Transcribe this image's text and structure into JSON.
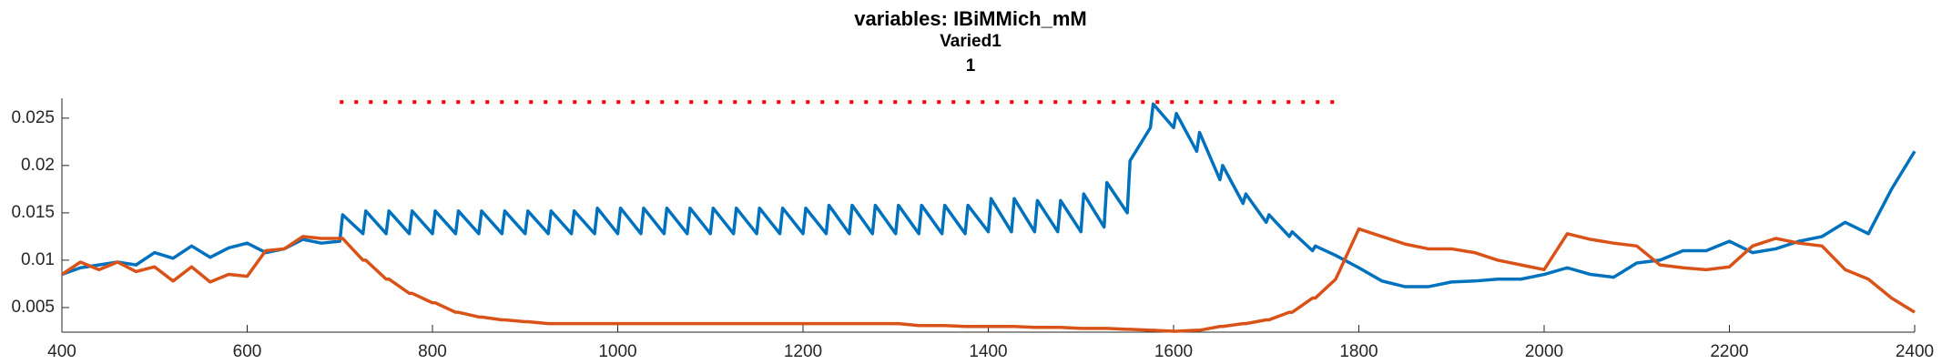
{
  "chart_data": {
    "type": "line",
    "title": "variables: IBiMMich_mM",
    "subtitle": "Varied1",
    "subtitle2": "1",
    "xlim": [
      400,
      2400
    ],
    "ylim": [
      0.0024,
      0.0271
    ],
    "xticks": [
      400,
      600,
      800,
      1000,
      1200,
      1400,
      1600,
      1800,
      2000,
      2200,
      2400
    ],
    "yticks": [
      0.005,
      0.01,
      0.015,
      0.02,
      0.025
    ],
    "grid": false,
    "reference_line": {
      "y": 0.0267,
      "x": [
        700,
        1785
      ],
      "color": "#ff0000",
      "style": "dotted"
    },
    "x": [
      400,
      420,
      440,
      460,
      480,
      500,
      520,
      540,
      560,
      580,
      600,
      620,
      640,
      660,
      680,
      700,
      703,
      725,
      728,
      750,
      753,
      775,
      778,
      800,
      803,
      825,
      828,
      850,
      853,
      875,
      878,
      900,
      903,
      925,
      928,
      950,
      953,
      975,
      978,
      1000,
      1003,
      1025,
      1028,
      1050,
      1053,
      1075,
      1078,
      1100,
      1103,
      1125,
      1128,
      1150,
      1153,
      1175,
      1178,
      1200,
      1203,
      1225,
      1228,
      1250,
      1253,
      1275,
      1278,
      1300,
      1303,
      1325,
      1328,
      1350,
      1353,
      1375,
      1378,
      1400,
      1403,
      1425,
      1428,
      1450,
      1453,
      1475,
      1478,
      1500,
      1503,
      1525,
      1528,
      1550,
      1553,
      1575,
      1578,
      1600,
      1603,
      1625,
      1628,
      1650,
      1653,
      1675,
      1678,
      1700,
      1703,
      1725,
      1728,
      1750,
      1753,
      1775,
      1800,
      1825,
      1850,
      1875,
      1900,
      1925,
      1950,
      1975,
      2000,
      2025,
      2050,
      2075,
      2100,
      2125,
      2150,
      2175,
      2200,
      2225,
      2250,
      2275,
      2300,
      2325,
      2350,
      2375,
      2400
    ],
    "series": [
      {
        "color": "#0072bd",
        "values": [
          0.0085,
          0.0092,
          0.0095,
          0.0098,
          0.0095,
          0.0108,
          0.0102,
          0.0115,
          0.0103,
          0.0113,
          0.0118,
          0.0108,
          0.0112,
          0.0122,
          0.0118,
          0.012,
          0.0148,
          0.0128,
          0.0152,
          0.0128,
          0.0152,
          0.0128,
          0.0152,
          0.0128,
          0.0152,
          0.0128,
          0.0152,
          0.0128,
          0.0152,
          0.0128,
          0.0152,
          0.0128,
          0.0152,
          0.0128,
          0.0152,
          0.0128,
          0.0152,
          0.0128,
          0.0155,
          0.0128,
          0.0155,
          0.0128,
          0.0155,
          0.0128,
          0.0155,
          0.0128,
          0.0155,
          0.0128,
          0.0155,
          0.0128,
          0.0155,
          0.0128,
          0.0155,
          0.0128,
          0.0155,
          0.0128,
          0.0155,
          0.0128,
          0.0158,
          0.0128,
          0.0158,
          0.0128,
          0.0158,
          0.0128,
          0.0158,
          0.0128,
          0.0158,
          0.0128,
          0.0158,
          0.0128,
          0.0158,
          0.013,
          0.0165,
          0.013,
          0.0165,
          0.013,
          0.0163,
          0.013,
          0.0163,
          0.013,
          0.017,
          0.0135,
          0.0182,
          0.015,
          0.0205,
          0.024,
          0.0265,
          0.024,
          0.0255,
          0.0215,
          0.0235,
          0.0185,
          0.02,
          0.016,
          0.017,
          0.014,
          0.0148,
          0.0125,
          0.013,
          0.011,
          0.0115,
          0.0105,
          0.0092,
          0.0078,
          0.0072,
          0.0072,
          0.0077,
          0.0078,
          0.008,
          0.008,
          0.0085,
          0.0092,
          0.0085,
          0.0082,
          0.0097,
          0.01,
          0.011,
          0.011,
          0.012,
          0.0108,
          0.0112,
          0.012,
          0.0125,
          0.014,
          0.0128,
          0.0175,
          0.0215
        ]
      },
      {
        "color": "#d95319",
        "values": [
          0.0085,
          0.0098,
          0.009,
          0.0098,
          0.0088,
          0.0093,
          0.0078,
          0.0093,
          0.0077,
          0.0085,
          0.0083,
          0.011,
          0.0112,
          0.0125,
          0.0123,
          0.0123,
          0.0123,
          0.01,
          0.01,
          0.008,
          0.008,
          0.0065,
          0.0065,
          0.0055,
          0.0055,
          0.0045,
          0.0045,
          0.004,
          0.004,
          0.0037,
          0.0037,
          0.0035,
          0.0035,
          0.0033,
          0.0033,
          0.0033,
          0.0033,
          0.0033,
          0.0033,
          0.0033,
          0.0033,
          0.0033,
          0.0033,
          0.0033,
          0.0033,
          0.0033,
          0.0033,
          0.0033,
          0.0033,
          0.0033,
          0.0033,
          0.0033,
          0.0033,
          0.0033,
          0.0033,
          0.0033,
          0.0033,
          0.0033,
          0.0033,
          0.0033,
          0.0033,
          0.0033,
          0.0033,
          0.0033,
          0.0033,
          0.0031,
          0.0031,
          0.0031,
          0.0031,
          0.003,
          0.003,
          0.003,
          0.003,
          0.003,
          0.003,
          0.0029,
          0.0029,
          0.0029,
          0.0029,
          0.0028,
          0.0028,
          0.0028,
          0.0028,
          0.0027,
          0.0027,
          0.0026,
          0.0026,
          0.0025,
          0.0025,
          0.0026,
          0.0026,
          0.003,
          0.003,
          0.0033,
          0.0033,
          0.0037,
          0.0037,
          0.0045,
          0.0045,
          0.006,
          0.006,
          0.008,
          0.0133,
          0.0125,
          0.0117,
          0.0112,
          0.0112,
          0.0108,
          0.01,
          0.0095,
          0.009,
          0.0128,
          0.0122,
          0.0118,
          0.0115,
          0.0095,
          0.0092,
          0.009,
          0.0093,
          0.0115,
          0.0123,
          0.0118,
          0.0115,
          0.009,
          0.008,
          0.006,
          0.0045
        ]
      }
    ]
  }
}
